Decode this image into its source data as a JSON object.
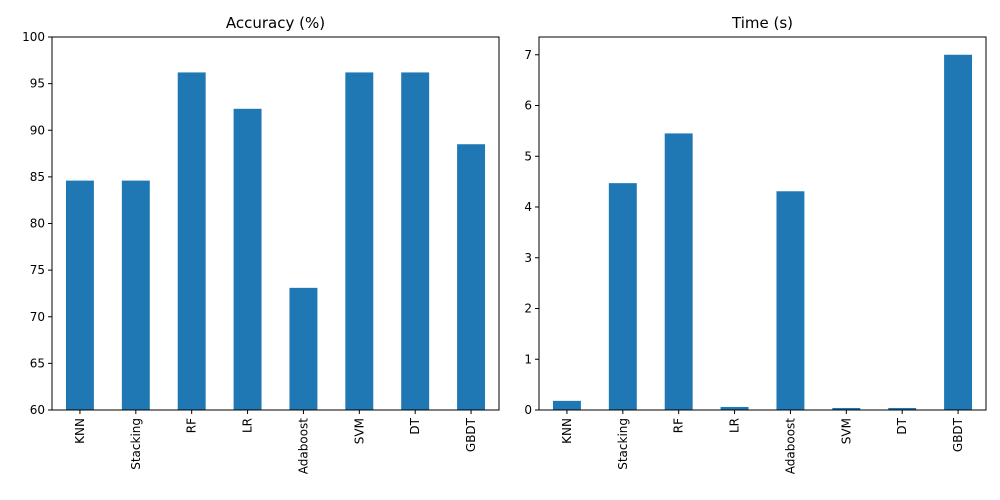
{
  "colors": {
    "bar": "#1f77b4",
    "axis": "#000000",
    "background": "#ffffff"
  },
  "chart_data": [
    {
      "type": "bar",
      "title": "Accuracy (%)",
      "xlabel": "",
      "ylabel": "",
      "categories": [
        "KNN",
        "Stacking",
        "RF",
        "LR",
        "Adaboost",
        "SVM",
        "DT",
        "GBDT"
      ],
      "values": [
        84.6,
        84.6,
        96.2,
        92.3,
        73.1,
        96.2,
        96.2,
        88.5
      ],
      "ylim": [
        60,
        100
      ],
      "yticks": [
        60,
        65,
        70,
        75,
        80,
        85,
        90,
        95,
        100
      ],
      "grid": false,
      "legend": "none"
    },
    {
      "type": "bar",
      "title": "Time (s)",
      "xlabel": "",
      "ylabel": "",
      "categories": [
        "KNN",
        "Stacking",
        "RF",
        "LR",
        "Adaboost",
        "SVM",
        "DT",
        "GBDT"
      ],
      "values": [
        0.18,
        4.47,
        5.45,
        0.06,
        4.31,
        0.04,
        0.04,
        7.0
      ],
      "ylim": [
        0,
        7.35
      ],
      "yticks": [
        0,
        1,
        2,
        3,
        4,
        5,
        6,
        7
      ],
      "grid": false,
      "legend": "none"
    }
  ]
}
